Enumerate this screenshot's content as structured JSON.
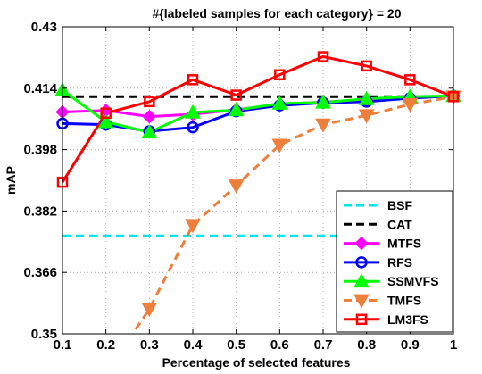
{
  "chart_data": {
    "type": "line",
    "title": "#{labeled samples for each category} = 20",
    "xlabel": "Percentage of selected features",
    "ylabel": "mAP",
    "xlim": [
      0.1,
      1.0
    ],
    "ylim": [
      0.35,
      0.43
    ],
    "x_ticks": [
      "0.1",
      "0.2",
      "0.3",
      "0.4",
      "0.5",
      "0.6",
      "0.7",
      "0.8",
      "0.9",
      "1"
    ],
    "y_ticks": [
      "0.35",
      "0.366",
      "0.382",
      "0.398",
      "0.414",
      "0.43"
    ],
    "grid": true,
    "legend_position": "bottom-right",
    "x": [
      0.1,
      0.2,
      0.3,
      0.4,
      0.5,
      0.6,
      0.7,
      0.8,
      0.9,
      1.0
    ],
    "series": [
      {
        "name": "BSF",
        "color": "#00e5ee",
        "dash": "dashed",
        "marker": "none",
        "values": [
          0.3755,
          0.3755,
          0.3755,
          0.3755,
          0.3755,
          0.3755,
          0.3755,
          0.3755,
          0.3755,
          0.3755
        ]
      },
      {
        "name": "CAT",
        "color": "#000000",
        "dash": "dashed",
        "marker": "none",
        "values": [
          0.4118,
          0.4118,
          0.4118,
          0.4118,
          0.4118,
          0.4118,
          0.4118,
          0.4118,
          0.4118,
          0.4118
        ]
      },
      {
        "name": "MTFS",
        "color": "#ff00ff",
        "dash": "solid",
        "marker": "diamond",
        "values": [
          0.4078,
          0.4082,
          0.4066,
          0.4072,
          0.4084,
          0.4098,
          0.4104,
          0.411,
          0.4116,
          0.412
        ]
      },
      {
        "name": "RFS",
        "color": "#0000ff",
        "dash": "solid",
        "marker": "circle",
        "values": [
          0.4048,
          0.4045,
          0.4028,
          0.4038,
          0.408,
          0.4095,
          0.4102,
          0.4105,
          0.4114,
          0.412
        ]
      },
      {
        "name": "SSMVFS",
        "color": "#00ff00",
        "dash": "solid",
        "marker": "triangle-up",
        "values": [
          0.4135,
          0.4052,
          0.4025,
          0.4077,
          0.4083,
          0.41,
          0.4103,
          0.4112,
          0.4118,
          0.412
        ]
      },
      {
        "name": "TMFS",
        "color": "#ee7f3b",
        "dash": "dashed",
        "marker": "triangle-down",
        "values": [
          null,
          0.3395,
          0.3565,
          0.3783,
          0.3886,
          0.3992,
          0.4045,
          0.4069,
          0.4098,
          0.4118
        ]
      },
      {
        "name": "LM3FS",
        "color": "#ff0000",
        "dash": "solid",
        "marker": "square",
        "values": [
          0.3895,
          0.4075,
          0.4105,
          0.4162,
          0.4122,
          0.4175,
          0.4222,
          0.4198,
          0.4162,
          0.4118
        ]
      }
    ]
  }
}
